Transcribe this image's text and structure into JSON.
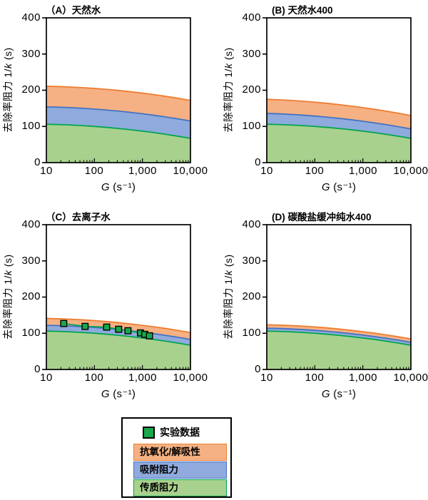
{
  "colors": {
    "mass_fill": "#A9D18E",
    "mass_line": "#00A550",
    "ads_fill": "#8FAADC",
    "ads_line": "#4472C4",
    "oxi_fill": "#F5B183",
    "oxi_line": "#ED7D31",
    "marker_fill": "#17A84B",
    "marker_line": "#000000",
    "axis": "#000000"
  },
  "axes": {
    "y_label_prefix": "去除率阻力 1/",
    "y_label_var": "k",
    "y_label_suffix": " (s)",
    "x_label_var": "G",
    "x_label_unit": " (s⁻¹)",
    "y_ticks": [
      "0",
      "100",
      "200",
      "300",
      "400"
    ],
    "x_ticks": [
      "10",
      "100",
      "1,000",
      "10,000"
    ]
  },
  "legend": {
    "experimental_label": "实验数据",
    "oxidation_label": "抗氧化/解吸性",
    "adsorption_label": "吸附阻力",
    "mass_transfer_label": "传质阻力"
  },
  "chart_data": [
    {
      "panel": "A",
      "title": "（A）天然水",
      "type": "area",
      "xscale": "log",
      "xlim": [
        10,
        10000
      ],
      "ylim": [
        0,
        400
      ],
      "xlabel": "G (s⁻¹)",
      "ylabel": "去除率阻力 1/k (s)",
      "x": [
        10,
        17.8,
        31.6,
        56.2,
        100,
        178,
        316,
        562,
        1000,
        1778,
        3162,
        5623,
        10000
      ],
      "series": [
        {
          "name": "传质阻力",
          "color_key": "mass",
          "top": [
            106,
            105.2,
            103.9,
            102.2,
            100,
            97.4,
            94.4,
            90.9,
            87,
            82.7,
            77.9,
            72.7,
            67
          ]
        },
        {
          "name": "吸附阻力",
          "color_key": "ads",
          "top": [
            154,
            153.2,
            151.9,
            150.2,
            148,
            145.4,
            142.4,
            138.9,
            135,
            130.7,
            125.9,
            120.7,
            115
          ]
        },
        {
          "name": "抗氧化/解吸性",
          "color_key": "oxi",
          "top": [
            211,
            210.2,
            208.9,
            207.2,
            205,
            202.4,
            199.4,
            195.9,
            192,
            187.7,
            182.9,
            177.7,
            172
          ]
        }
      ],
      "points": null
    },
    {
      "panel": "B",
      "title": "(B) 天然水400",
      "type": "area",
      "xscale": "log",
      "xlim": [
        10,
        10000
      ],
      "ylim": [
        0,
        400
      ],
      "xlabel": "G (s⁻¹)",
      "ylabel": "去除率阻力 1/k (s)",
      "x": [
        10,
        17.8,
        31.6,
        56.2,
        100,
        178,
        316,
        562,
        1000,
        1778,
        3162,
        5623,
        10000
      ],
      "series": [
        {
          "name": "传质阻力",
          "color_key": "mass",
          "top": [
            106,
            105.2,
            103.9,
            102.2,
            100,
            97.4,
            94.4,
            90.9,
            87,
            82.7,
            77.9,
            72.7,
            67
          ]
        },
        {
          "name": "吸附阻力",
          "color_key": "ads",
          "top": [
            136,
            134.9,
            133.2,
            131.2,
            128.7,
            125.7,
            122.4,
            118.6,
            114.3,
            109.7,
            104.6,
            99,
            93
          ]
        },
        {
          "name": "抗氧化/解吸性",
          "color_key": "oxi",
          "top": [
            175,
            173.7,
            171.9,
            169.7,
            167,
            163.9,
            160.4,
            156.4,
            152,
            147.2,
            141.9,
            136.2,
            130
          ]
        }
      ],
      "points": null
    },
    {
      "panel": "C",
      "title": "（C）去离子水",
      "type": "area",
      "xscale": "log",
      "xlim": [
        10,
        10000
      ],
      "ylim": [
        0,
        400
      ],
      "xlabel": "G (s⁻¹)",
      "ylabel": "去除率阻力 1/k (s)",
      "x": [
        10,
        17.8,
        31.6,
        56.2,
        100,
        178,
        316,
        562,
        1000,
        1778,
        3162,
        5623,
        10000
      ],
      "series": [
        {
          "name": "传质阻力",
          "color_key": "mass",
          "top": [
            106,
            105.2,
            103.9,
            102.2,
            100,
            97.4,
            94.4,
            90.9,
            87,
            82.7,
            77.9,
            72.7,
            67
          ]
        },
        {
          "name": "吸附阻力",
          "color_key": "ads",
          "top": [
            122,
            121.2,
            119.9,
            118.2,
            116,
            113.4,
            110.4,
            106.9,
            103,
            98.7,
            93.9,
            88.7,
            83
          ]
        },
        {
          "name": "抗氧化/解吸性",
          "color_key": "oxi",
          "top": [
            141,
            140.2,
            138.9,
            137.2,
            135,
            132.4,
            129.4,
            125.9,
            122,
            117.7,
            112.9,
            107.7,
            102
          ]
        }
      ],
      "points": {
        "name": "实验数据",
        "x": [
          23,
          64,
          180,
          320,
          500,
          910,
          1120,
          1400
        ],
        "y": [
          127,
          119,
          117,
          111,
          107,
          101,
          97,
          93
        ]
      }
    },
    {
      "panel": "D",
      "title": "(D) 碳酸盐缓冲纯水400",
      "type": "area",
      "xscale": "log",
      "xlim": [
        10,
        10000
      ],
      "ylim": [
        0,
        400
      ],
      "xlabel": "G (s⁻¹)",
      "ylabel": "去除率阻力 1/k (s)",
      "x": [
        10,
        17.8,
        31.6,
        56.2,
        100,
        178,
        316,
        562,
        1000,
        1778,
        3162,
        5623,
        10000
      ],
      "series": [
        {
          "name": "传质阻力",
          "color_key": "mass",
          "top": [
            106,
            105.2,
            103.9,
            102.2,
            100,
            97.4,
            94.4,
            90.9,
            87,
            82.7,
            77.9,
            72.7,
            67
          ]
        },
        {
          "name": "吸附阻力",
          "color_key": "ads",
          "top": [
            114,
            113.2,
            111.9,
            110.2,
            108,
            105.4,
            102.4,
            98.9,
            95,
            90.7,
            85.9,
            80.7,
            75
          ]
        },
        {
          "name": "抗氧化/解吸性",
          "color_key": "oxi",
          "top": [
            123.5,
            122.7,
            121.4,
            119.7,
            117.5,
            114.9,
            111.9,
            108.4,
            104.5,
            100.2,
            95.4,
            90.2,
            84.5
          ]
        }
      ],
      "points": null
    }
  ]
}
